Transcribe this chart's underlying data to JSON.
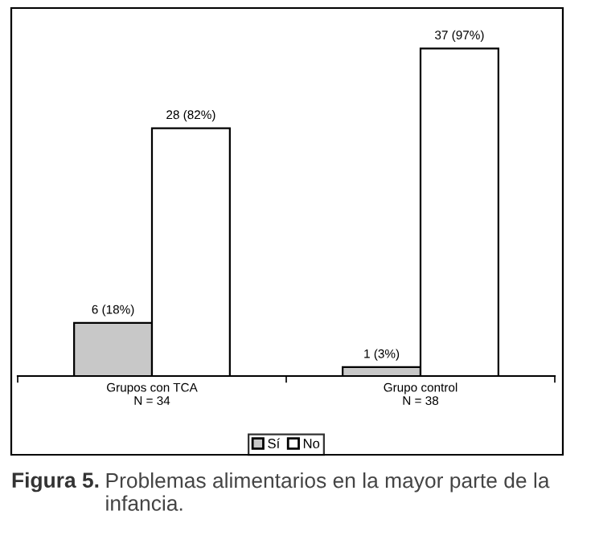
{
  "chart_data": {
    "type": "bar",
    "title": "Figura 5.",
    "subtitle": "Problemas alimentarios en la mayor parte de la infancia.",
    "categories": [
      "Grupos con TCA\nN = 34",
      "Grupo control\nN = 38"
    ],
    "series": [
      {
        "name": "Sí",
        "color": "#c8c8c8",
        "values": [
          6,
          1
        ],
        "value_labels": [
          "6 (18%)",
          "1 (3%)"
        ]
      },
      {
        "name": "No",
        "color": "#ffffff",
        "values": [
          28,
          37
        ],
        "value_labels": [
          "28 (82%)",
          "37 (97%)"
        ]
      }
    ],
    "legend": "bottom",
    "grid": false
  }
}
